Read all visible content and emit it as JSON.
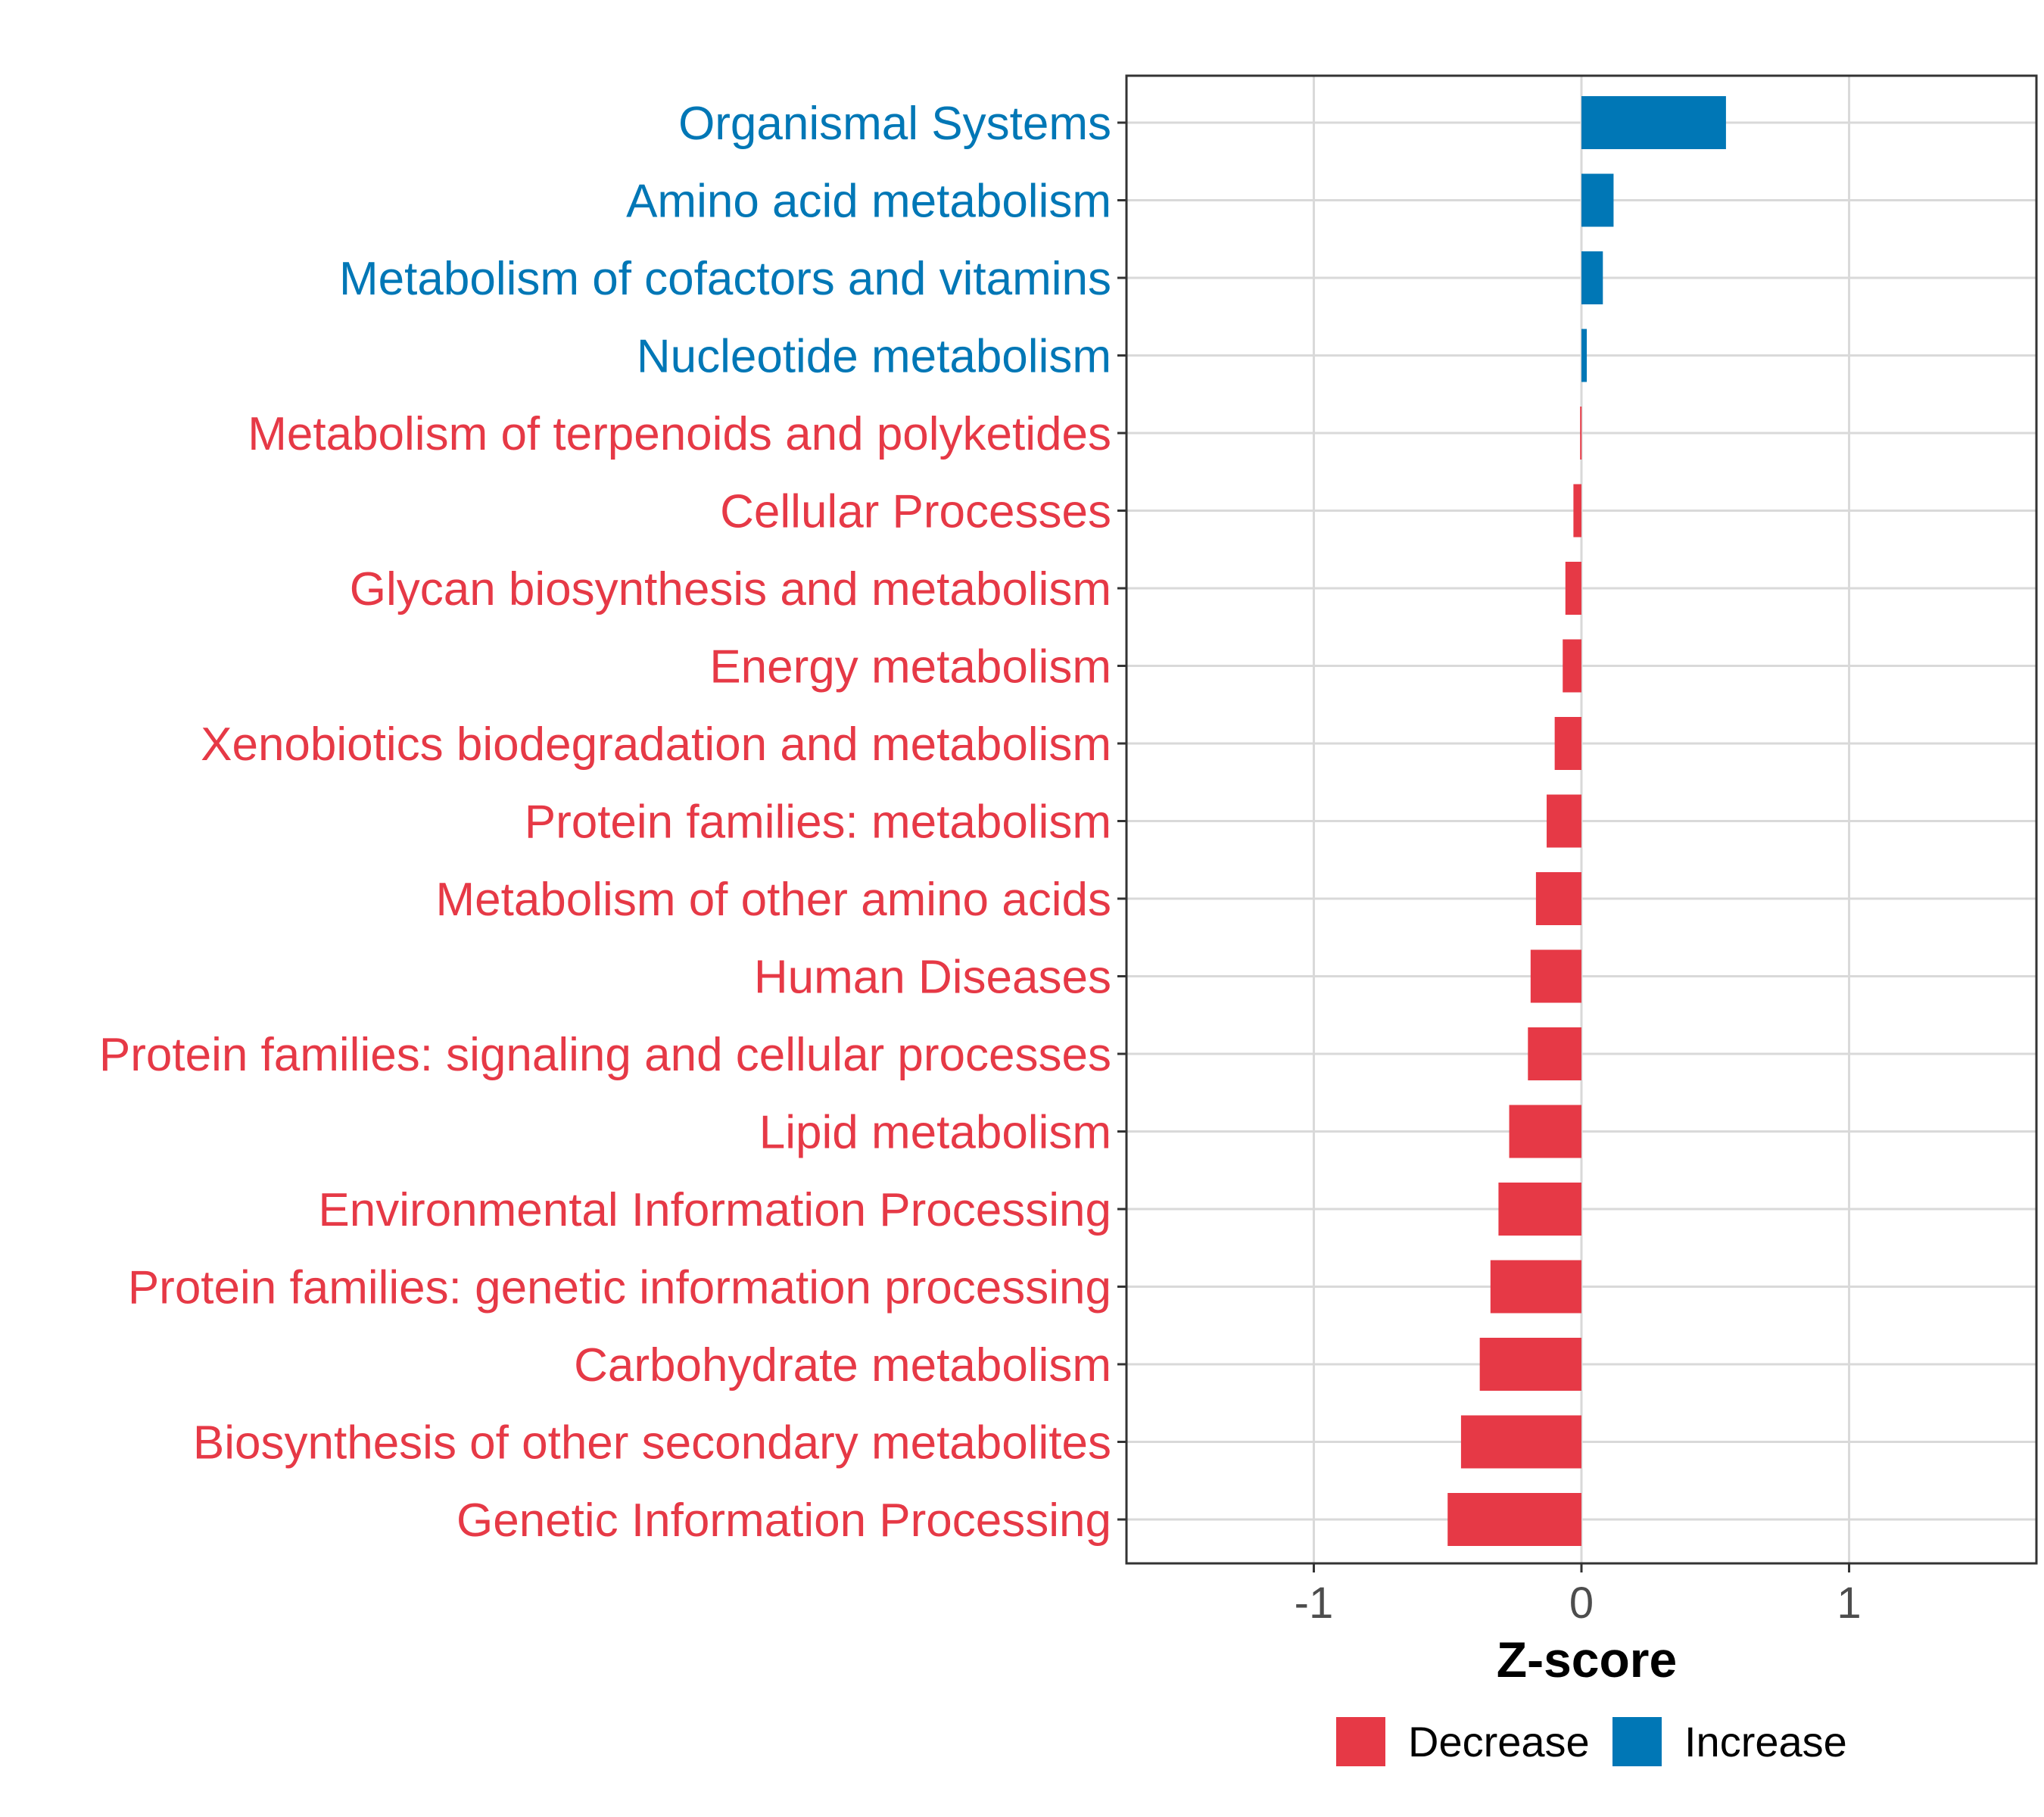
{
  "chart_data": {
    "type": "bar",
    "orientation": "horizontal",
    "title": "",
    "xlabel": "Z-score",
    "ylabel": "",
    "xlim": [
      -1.7,
      1.7
    ],
    "xticks": [
      -1,
      0,
      1
    ],
    "xtick_labels": [
      "-1",
      "0",
      "1"
    ],
    "grid": true,
    "categories": [
      "Organismal Systems",
      "Amino acid metabolism",
      "Metabolism of cofactors and vitamins",
      "Nucleotide metabolism",
      "Metabolism of terpenoids and polyketides",
      "Cellular Processes",
      "Glycan biosynthesis and metabolism",
      "Energy metabolism",
      "Xenobiotics biodegradation and metabolism",
      "Protein families: metabolism",
      "Metabolism of other amino acids",
      "Human Diseases",
      "Protein families: signaling and cellular processes",
      "Lipid metabolism",
      "Environmental Information Processing",
      "Protein families: genetic information processing",
      "Carbohydrate metabolism",
      "Biosynthesis of other secondary metabolites",
      "Genetic Information Processing"
    ],
    "values": [
      0.54,
      0.12,
      0.08,
      0.02,
      -0.005,
      -0.03,
      -0.06,
      -0.07,
      -0.1,
      -0.13,
      -0.17,
      -0.19,
      -0.2,
      -0.27,
      -0.31,
      -0.34,
      -0.38,
      -0.45,
      -0.5
    ],
    "groups": [
      "Increase",
      "Increase",
      "Increase",
      "Increase",
      "Decrease",
      "Decrease",
      "Decrease",
      "Decrease",
      "Decrease",
      "Decrease",
      "Decrease",
      "Decrease",
      "Decrease",
      "Decrease",
      "Decrease",
      "Decrease",
      "Decrease",
      "Decrease",
      "Decrease"
    ],
    "legend": {
      "position": "bottom",
      "items": [
        {
          "label": "Decrease",
          "color": "#e63946"
        },
        {
          "label": "Increase",
          "color": "#0077b6"
        }
      ]
    }
  }
}
